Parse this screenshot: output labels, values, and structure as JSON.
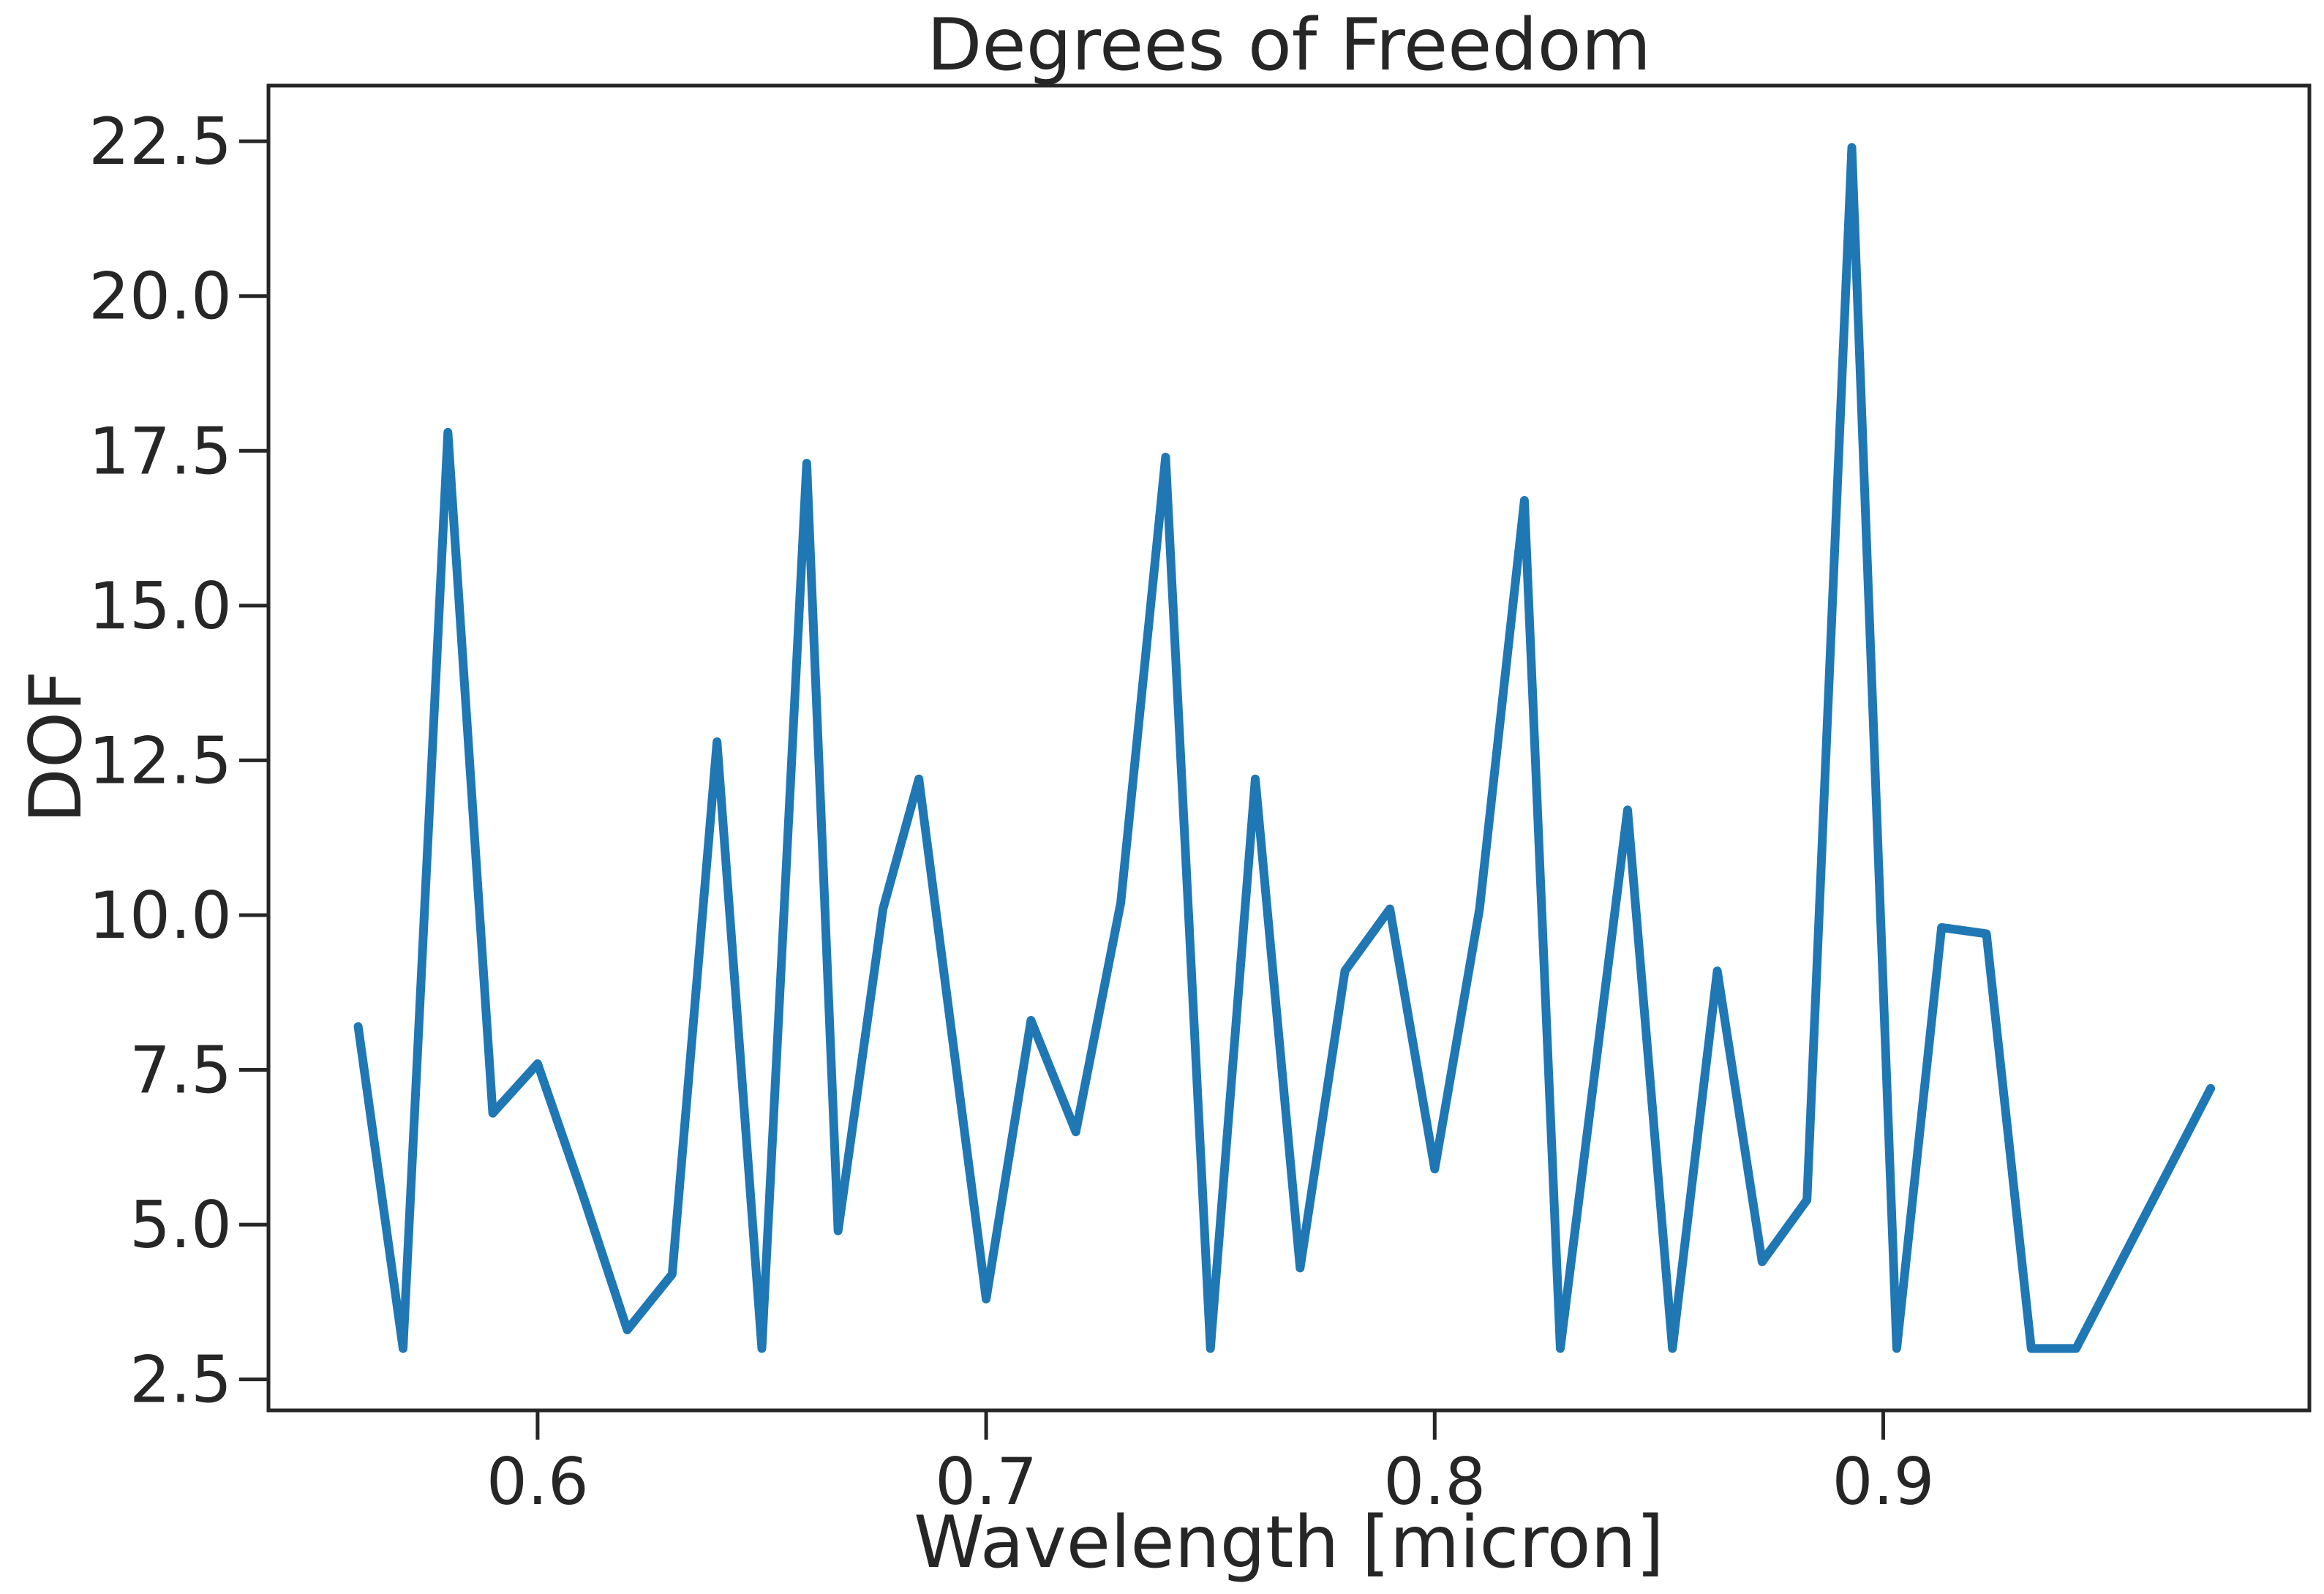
{
  "chart_data": {
    "type": "line",
    "title": "Degrees of Freedom",
    "xlabel": "Wavelength [micron]",
    "ylabel": "DOF",
    "xlim": [
      0.54,
      0.995
    ],
    "ylim": [
      2.0,
      23.4
    ],
    "grid": false,
    "x_ticks": [
      {
        "value": 0.6,
        "label": "0.6"
      },
      {
        "value": 0.7,
        "label": "0.7"
      },
      {
        "value": 0.8,
        "label": "0.8"
      },
      {
        "value": 0.9,
        "label": "0.9"
      }
    ],
    "y_ticks": [
      {
        "value": 2.5,
        "label": "2.5"
      },
      {
        "value": 5.0,
        "label": "5.0"
      },
      {
        "value": 7.5,
        "label": "7.5"
      },
      {
        "value": 10.0,
        "label": "10.0"
      },
      {
        "value": 12.5,
        "label": "12.5"
      },
      {
        "value": 15.0,
        "label": "15.0"
      },
      {
        "value": 17.5,
        "label": "17.5"
      },
      {
        "value": 20.0,
        "label": "20.0"
      },
      {
        "value": 22.5,
        "label": "22.5"
      }
    ],
    "series": [
      {
        "color": "#1f77b4",
        "x": [
          0.56,
          0.57,
          0.58,
          0.59,
          0.6,
          0.61,
          0.62,
          0.63,
          0.64,
          0.65,
          0.66,
          0.667,
          0.677,
          0.685,
          0.7,
          0.71,
          0.72,
          0.73,
          0.74,
          0.75,
          0.76,
          0.77,
          0.78,
          0.79,
          0.8,
          0.81,
          0.82,
          0.828,
          0.843,
          0.853,
          0.863,
          0.873,
          0.883,
          0.893,
          0.903,
          0.913,
          0.923,
          0.933,
          0.943,
          0.973
        ],
        "y": [
          8.2,
          3.0,
          17.8,
          6.8,
          7.6,
          5.5,
          3.3,
          4.2,
          12.8,
          3.0,
          17.3,
          4.9,
          10.1,
          12.2,
          3.8,
          8.3,
          6.5,
          10.2,
          17.4,
          3.0,
          12.2,
          4.3,
          9.1,
          10.1,
          5.9,
          10.1,
          16.7,
          3.0,
          11.7,
          3.0,
          9.1,
          4.4,
          5.4,
          22.4,
          3.0,
          9.8,
          9.7,
          3.0,
          3.0,
          7.2
        ]
      }
    ]
  }
}
